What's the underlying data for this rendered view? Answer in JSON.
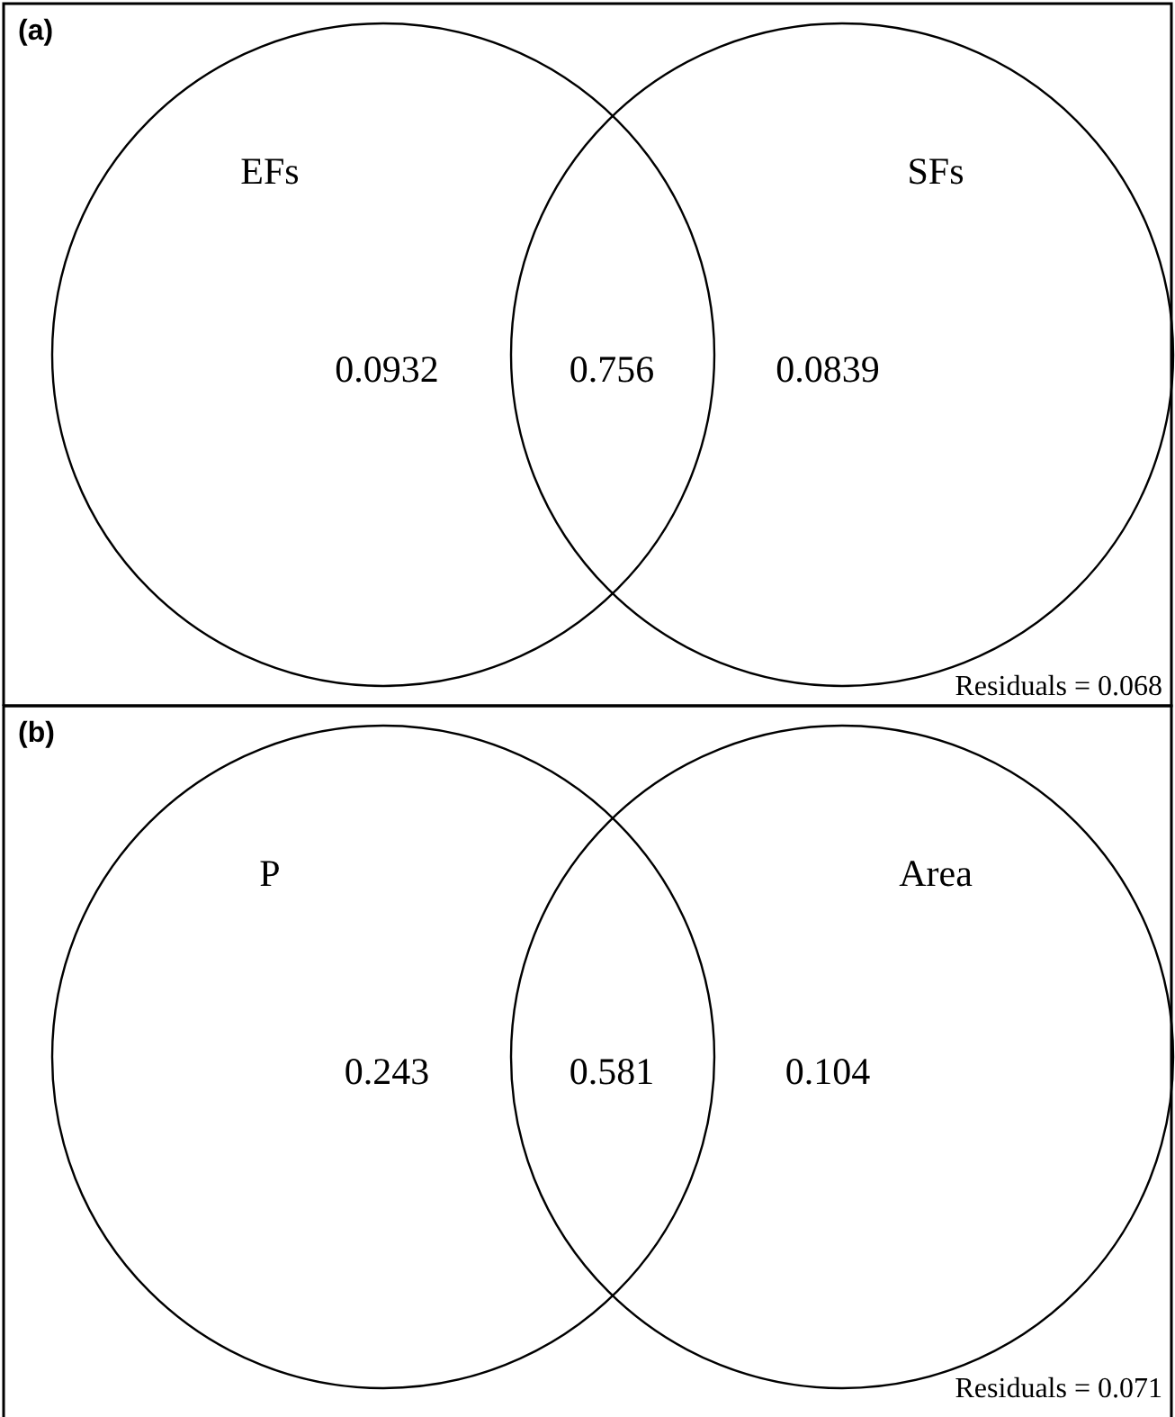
{
  "chart_data": [
    {
      "type": "other",
      "title": "(a)",
      "categories": [
        null,
        null,
        null
      ],
      "values": [
        0.0932,
        0.756,
        0.0839
      ],
      "data_labels": true,
      "annotations": [
        "EFs",
        "SFs",
        "Residuals = 0.068"
      ]
    },
    {
      "type": "other",
      "title": "(b)",
      "categories": [
        null,
        null,
        null
      ],
      "values": [
        0.243,
        0.581,
        0.104
      ],
      "data_labels": true,
      "annotations": [
        "P",
        "Area",
        "Residuals = 0.071"
      ]
    }
  ]
}
